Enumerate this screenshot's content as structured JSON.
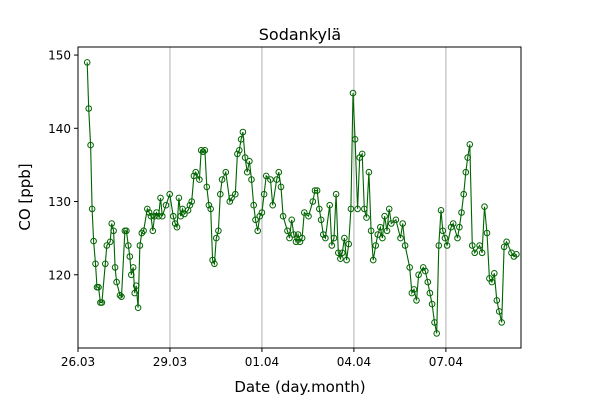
{
  "chart_data": {
    "type": "line",
    "title": "Sodankylä",
    "xlabel": "Date (day.month)",
    "ylabel": "CO [ppb]",
    "x_units": "days since 26.03 00:00",
    "xlim": [
      0,
      14.45
    ],
    "ylim": [
      110,
      151.1
    ],
    "grid": "vertical lines at x ticks",
    "x_ticks": [
      {
        "value": 0,
        "label": "26.03"
      },
      {
        "value": 3,
        "label": "29.03"
      },
      {
        "value": 6,
        "label": "01.04"
      },
      {
        "value": 9,
        "label": "04.04"
      },
      {
        "value": 12,
        "label": "07.04"
      }
    ],
    "y_ticks": [
      {
        "value": 120,
        "label": "120"
      },
      {
        "value": 130,
        "label": "130"
      },
      {
        "value": 140,
        "label": "140"
      },
      {
        "value": 150,
        "label": "150"
      }
    ],
    "series": [
      {
        "name": "CO",
        "color": "#006400",
        "marker": "open-circle",
        "x": [
          0.3,
          0.35,
          0.41,
          0.46,
          0.51,
          0.57,
          0.62,
          0.67,
          0.73,
          0.78,
          0.89,
          0.94,
          1.05,
          1.1,
          1.16,
          1.21,
          1.26,
          1.37,
          1.42,
          1.53,
          1.58,
          1.64,
          1.69,
          1.74,
          1.8,
          1.85,
          1.9,
          1.96,
          2.02,
          2.08,
          2.14,
          2.26,
          2.32,
          2.38,
          2.44,
          2.5,
          2.56,
          2.63,
          2.69,
          2.75,
          2.87,
          2.99,
          3.11,
          3.17,
          3.23,
          3.29,
          3.35,
          3.41,
          3.47,
          3.59,
          3.65,
          3.71,
          3.78,
          3.84,
          3.96,
          4.02,
          4.08,
          4.14,
          4.2,
          4.27,
          4.33,
          4.39,
          4.45,
          4.51,
          4.58,
          4.64,
          4.7,
          4.82,
          4.95,
          5.01,
          5.13,
          5.2,
          5.26,
          5.32,
          5.38,
          5.45,
          5.52,
          5.59,
          5.66,
          5.73,
          5.79,
          5.86,
          5.93,
          6.0,
          6.07,
          6.14,
          6.28,
          6.35,
          6.48,
          6.55,
          6.62,
          6.69,
          6.83,
          6.9,
          6.97,
          7.04,
          7.11,
          7.18,
          7.24,
          7.31,
          7.38,
          7.52,
          7.66,
          7.73,
          7.8,
          7.87,
          7.93,
          8.0,
          8.07,
          8.21,
          8.28,
          8.35,
          8.42,
          8.49,
          8.56,
          8.62,
          8.69,
          8.76,
          8.83,
          8.9,
          8.97,
          9.04,
          9.12,
          9.19,
          9.27,
          9.34,
          9.41,
          9.49,
          9.56,
          9.63,
          9.71,
          9.78,
          9.86,
          9.93,
          10.0,
          10.08,
          10.15,
          10.22,
          10.37,
          10.52,
          10.59,
          10.67,
          10.82,
          10.89,
          10.96,
          11.04,
          11.11,
          11.26,
          11.33,
          11.41,
          11.48,
          11.55,
          11.63,
          11.7,
          11.77,
          11.84,
          11.9,
          11.97,
          12.04,
          12.17,
          12.24,
          12.38,
          12.44,
          12.51,
          12.58,
          12.65,
          12.71,
          12.78,
          12.86,
          12.94,
          13.1,
          13.18,
          13.26,
          13.34,
          13.42,
          13.5,
          13.58,
          13.66,
          13.74,
          13.82,
          13.9,
          13.98,
          14.14,
          14.22,
          14.3
        ],
        "y": [
          149,
          142.7,
          137.7,
          129,
          124.6,
          121.5,
          118.3,
          118.3,
          116.2,
          116.2,
          121.5,
          124,
          124.5,
          127,
          126,
          121,
          119,
          117.2,
          117,
          126,
          126,
          124,
          122.5,
          120,
          121,
          117.5,
          118.5,
          115.5,
          124,
          125.7,
          126,
          129,
          128.5,
          128,
          126,
          128,
          128.5,
          128,
          130.5,
          128,
          129.5,
          131,
          128,
          127,
          126.5,
          130.5,
          128,
          129,
          128.3,
          128.8,
          129.5,
          130,
          133.5,
          134,
          133,
          137,
          136.8,
          137,
          132,
          129.5,
          129,
          122,
          121.5,
          125,
          126,
          131,
          133,
          134,
          130,
          130.5,
          131,
          136.5,
          137,
          138.5,
          139.5,
          136,
          134,
          135.5,
          133,
          129.5,
          127.5,
          126,
          128,
          128.5,
          131,
          133.5,
          133,
          129.5,
          133,
          134,
          132,
          128,
          126,
          125,
          127.5,
          125.5,
          124.5,
          125.5,
          124.5,
          125,
          128.5,
          128,
          130,
          131.5,
          131.5,
          129,
          127.5,
          125.5,
          125,
          129.5,
          124,
          125,
          131,
          123,
          122.2,
          123,
          125,
          122,
          124.2,
          129,
          144.8,
          138.5,
          129,
          136,
          136.5,
          129,
          127.8,
          134,
          126,
          122,
          124,
          125.5,
          126.5,
          125,
          128,
          126,
          129,
          127,
          127.5,
          125,
          127,
          124,
          121,
          117.5,
          118,
          116.5,
          120,
          121,
          120.5,
          119,
          117.5,
          116,
          113.5,
          112,
          124,
          128.8,
          126,
          125,
          124,
          126.5,
          127,
          125,
          126.5,
          128.5,
          131,
          134,
          136,
          137.8,
          124,
          123,
          124,
          123,
          129.3,
          125.7,
          119.5,
          119,
          120.2,
          116.5,
          115,
          113.5,
          123.8,
          124.5,
          123,
          122.5,
          122.8
        ]
      }
    ]
  }
}
